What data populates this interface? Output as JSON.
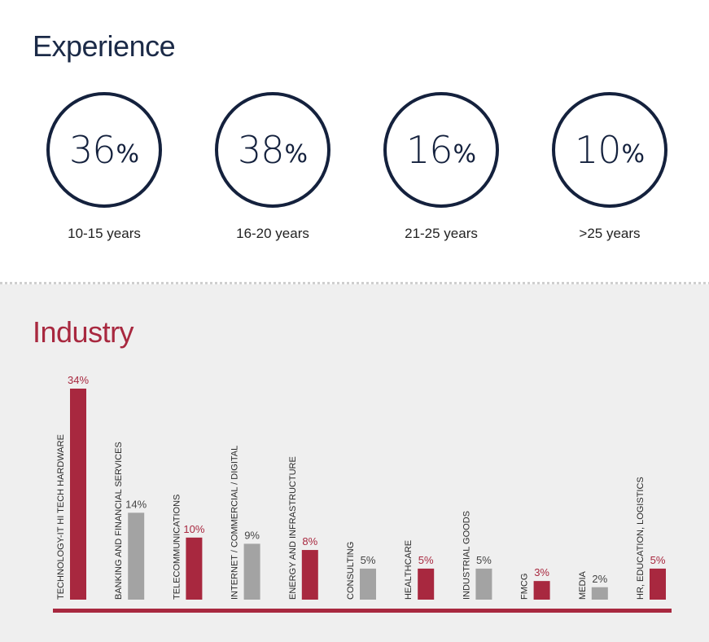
{
  "experience": {
    "title": "Experience",
    "stats": [
      {
        "number": "36",
        "percent_sign": "%",
        "label": "10-15 years"
      },
      {
        "number": "38",
        "percent_sign": "%",
        "label": "16-20 years"
      },
      {
        "number": "16",
        "percent_sign": "%",
        "label": "21-25 years"
      },
      {
        "number": "10",
        "percent_sign": "%",
        "label": ">25 years"
      }
    ]
  },
  "industry": {
    "title": "Industry"
  },
  "colors": {
    "navy": "#14213d",
    "red": "#a8283f",
    "gray": "#a3a3a3",
    "panel": "#efefef"
  },
  "chart_data": {
    "type": "bar",
    "title": "Industry",
    "categories": [
      "TECHNOLOGY-IT HI TECH HARDWARE",
      "BANKING AND FINANCIAL SERVICES",
      "TELECOMMUNICATIONS",
      "INTERNET / COMMERCIAL / DIGITAL",
      "ENERGY AND INFRASTRUCTURE",
      "CONSULTING",
      "HEALTHCARE",
      "INDUSTRIAL GOODS",
      "FMCG",
      "MEDIA",
      "HR, EDUCATION, LOGISTICS"
    ],
    "values": [
      34,
      14,
      10,
      9,
      8,
      5,
      5,
      5,
      3,
      2,
      5
    ],
    "value_labels": [
      "34%",
      "14%",
      "10%",
      "9%",
      "8%",
      "5%",
      "5%",
      "5%",
      "3%",
      "2%",
      "5%"
    ],
    "bar_colors": [
      "red",
      "gray",
      "red",
      "gray",
      "red",
      "gray",
      "red",
      "gray",
      "red",
      "gray",
      "red"
    ],
    "ylim": [
      0,
      34
    ],
    "grid": false
  }
}
